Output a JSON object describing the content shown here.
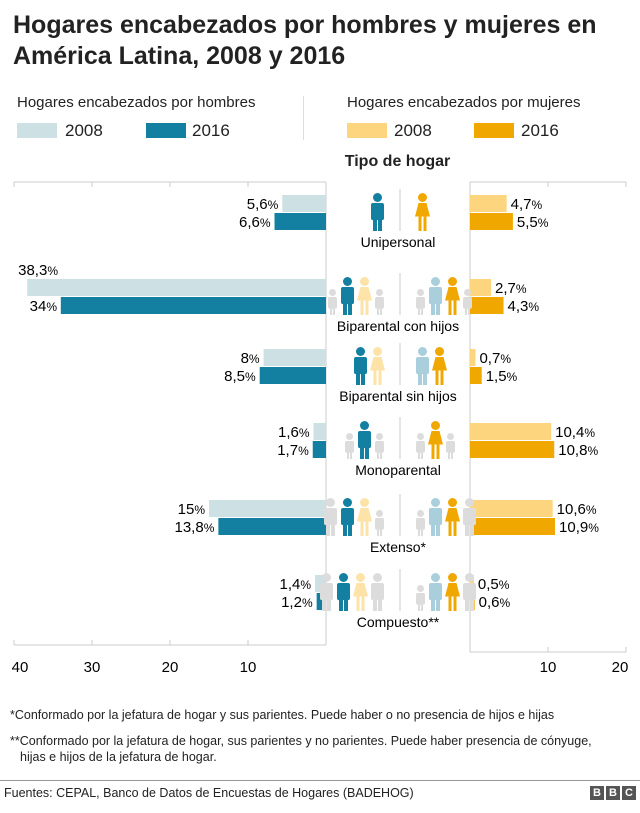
{
  "title": "Hogares encabezados por hombres y mujeres en América Latina, 2008 y 2016",
  "legend": {
    "men": {
      "heading": "Hogares encabezados por hombres",
      "items": [
        {
          "label": "2008",
          "color": "#cde0e4"
        },
        {
          "label": "2016",
          "color": "#1380a1"
        }
      ]
    },
    "women": {
      "heading": "Hogares encabezados por mujeres",
      "items": [
        {
          "label": "2008",
          "color": "#fdd57e"
        },
        {
          "label": "2016",
          "color": "#f0a800"
        }
      ]
    }
  },
  "chart_data": {
    "type": "bar",
    "orientation": "horizontal-butterfly",
    "subtitle": "Tipo de hogar",
    "categories": [
      "Unipersonal",
      "Biparental con hijos",
      "Biparental sin hijos",
      "Monoparental",
      "Extenso*",
      "Compuesto**"
    ],
    "series": [
      {
        "name": "Hogares encabezados por hombres 2008",
        "values": [
          5.6,
          38.3,
          8,
          1.6,
          15,
          1.4
        ],
        "labels": [
          "5,6%",
          "38,3%",
          "8%",
          "1,6%",
          "15%",
          "1,4%"
        ]
      },
      {
        "name": "Hogares encabezados por hombres 2016",
        "values": [
          6.6,
          34,
          8.5,
          1.7,
          13.8,
          1.2
        ],
        "labels": [
          "6,6%",
          "34%",
          "8,5%",
          "1,7%",
          "13,8%",
          "1,2%"
        ]
      },
      {
        "name": "Hogares encabezados por mujeres 2008",
        "values": [
          4.7,
          2.7,
          0.7,
          10.4,
          10.6,
          0.5
        ],
        "labels": [
          "4,7%",
          "2,7%",
          "0,7%",
          "10,4%",
          "10,6%",
          "0,5%"
        ]
      },
      {
        "name": "Hogares encabezados por mujeres 2016",
        "values": [
          5.5,
          4.3,
          1.5,
          10.8,
          10.9,
          0.6
        ],
        "labels": [
          "5,5%",
          "4,3%",
          "1,5%",
          "10,8%",
          "10,9%",
          "0,6%"
        ]
      }
    ],
    "left_axis": {
      "range": [
        0,
        40
      ],
      "ticks": [
        "40",
        "30",
        "20",
        "10"
      ],
      "tick_values": [
        40,
        30,
        20,
        10
      ]
    },
    "right_axis": {
      "range": [
        0,
        20
      ],
      "ticks": [
        "10",
        "20"
      ],
      "tick_values": [
        10,
        20
      ]
    },
    "grid": false,
    "icons": [
      {
        "men": [
          [
            "man",
            "teal"
          ]
        ],
        "women": [
          [
            "woman",
            "gold"
          ]
        ]
      },
      {
        "men": [
          [
            "child",
            "gray"
          ],
          [
            "man",
            "teal"
          ],
          [
            "woman",
            "beige"
          ],
          [
            "child",
            "gray"
          ]
        ],
        "women": [
          [
            "child",
            "gray"
          ],
          [
            "man",
            "lightblue"
          ],
          [
            "woman",
            "gold"
          ],
          [
            "child",
            "gray"
          ]
        ]
      },
      {
        "men": [
          [
            "man",
            "teal"
          ],
          [
            "woman",
            "beige"
          ]
        ],
        "women": [
          [
            "man",
            "lightblue"
          ],
          [
            "woman",
            "gold"
          ]
        ]
      },
      {
        "men": [
          [
            "child",
            "gray"
          ],
          [
            "man",
            "teal"
          ],
          [
            "child",
            "gray"
          ]
        ],
        "women": [
          [
            "child",
            "gray"
          ],
          [
            "woman",
            "gold"
          ],
          [
            "child",
            "gray"
          ]
        ]
      },
      {
        "men": [
          [
            "man",
            "gray"
          ],
          [
            "man",
            "teal"
          ],
          [
            "woman",
            "beige"
          ],
          [
            "child",
            "gray"
          ]
        ],
        "women": [
          [
            "child",
            "gray"
          ],
          [
            "man",
            "lightblue"
          ],
          [
            "woman",
            "gold"
          ],
          [
            "man",
            "gray"
          ]
        ]
      },
      {
        "men": [
          [
            "man",
            "gray"
          ],
          [
            "man",
            "teal"
          ],
          [
            "woman",
            "beige"
          ],
          [
            "man",
            "gray"
          ]
        ],
        "women": [
          [
            "child",
            "gray"
          ],
          [
            "man",
            "lightblue"
          ],
          [
            "woman",
            "gold"
          ],
          [
            "man",
            "gray"
          ]
        ]
      }
    ],
    "icon_colors": {
      "teal": "#1380a1",
      "gold": "#f0a800",
      "gray": "#dcdcdc",
      "lightblue": "#a9cfdc",
      "beige": "#fde3a7"
    }
  },
  "footnotes": [
    "*Conformado por la jefatura de hogar y sus parientes. Puede haber o no presencia de hijos e hijas",
    "**Conformado por la jefatura de hogar, sus parientes y no parientes. Puede haber presencia de cónyuge,",
    "hijas e hijos de la jefatura de hogar."
  ],
  "source": "Fuentes: CEPAL, Banco de Datos de Encuestas de Hogares (BADEHOG)",
  "logo": [
    "B",
    "B",
    "C"
  ]
}
